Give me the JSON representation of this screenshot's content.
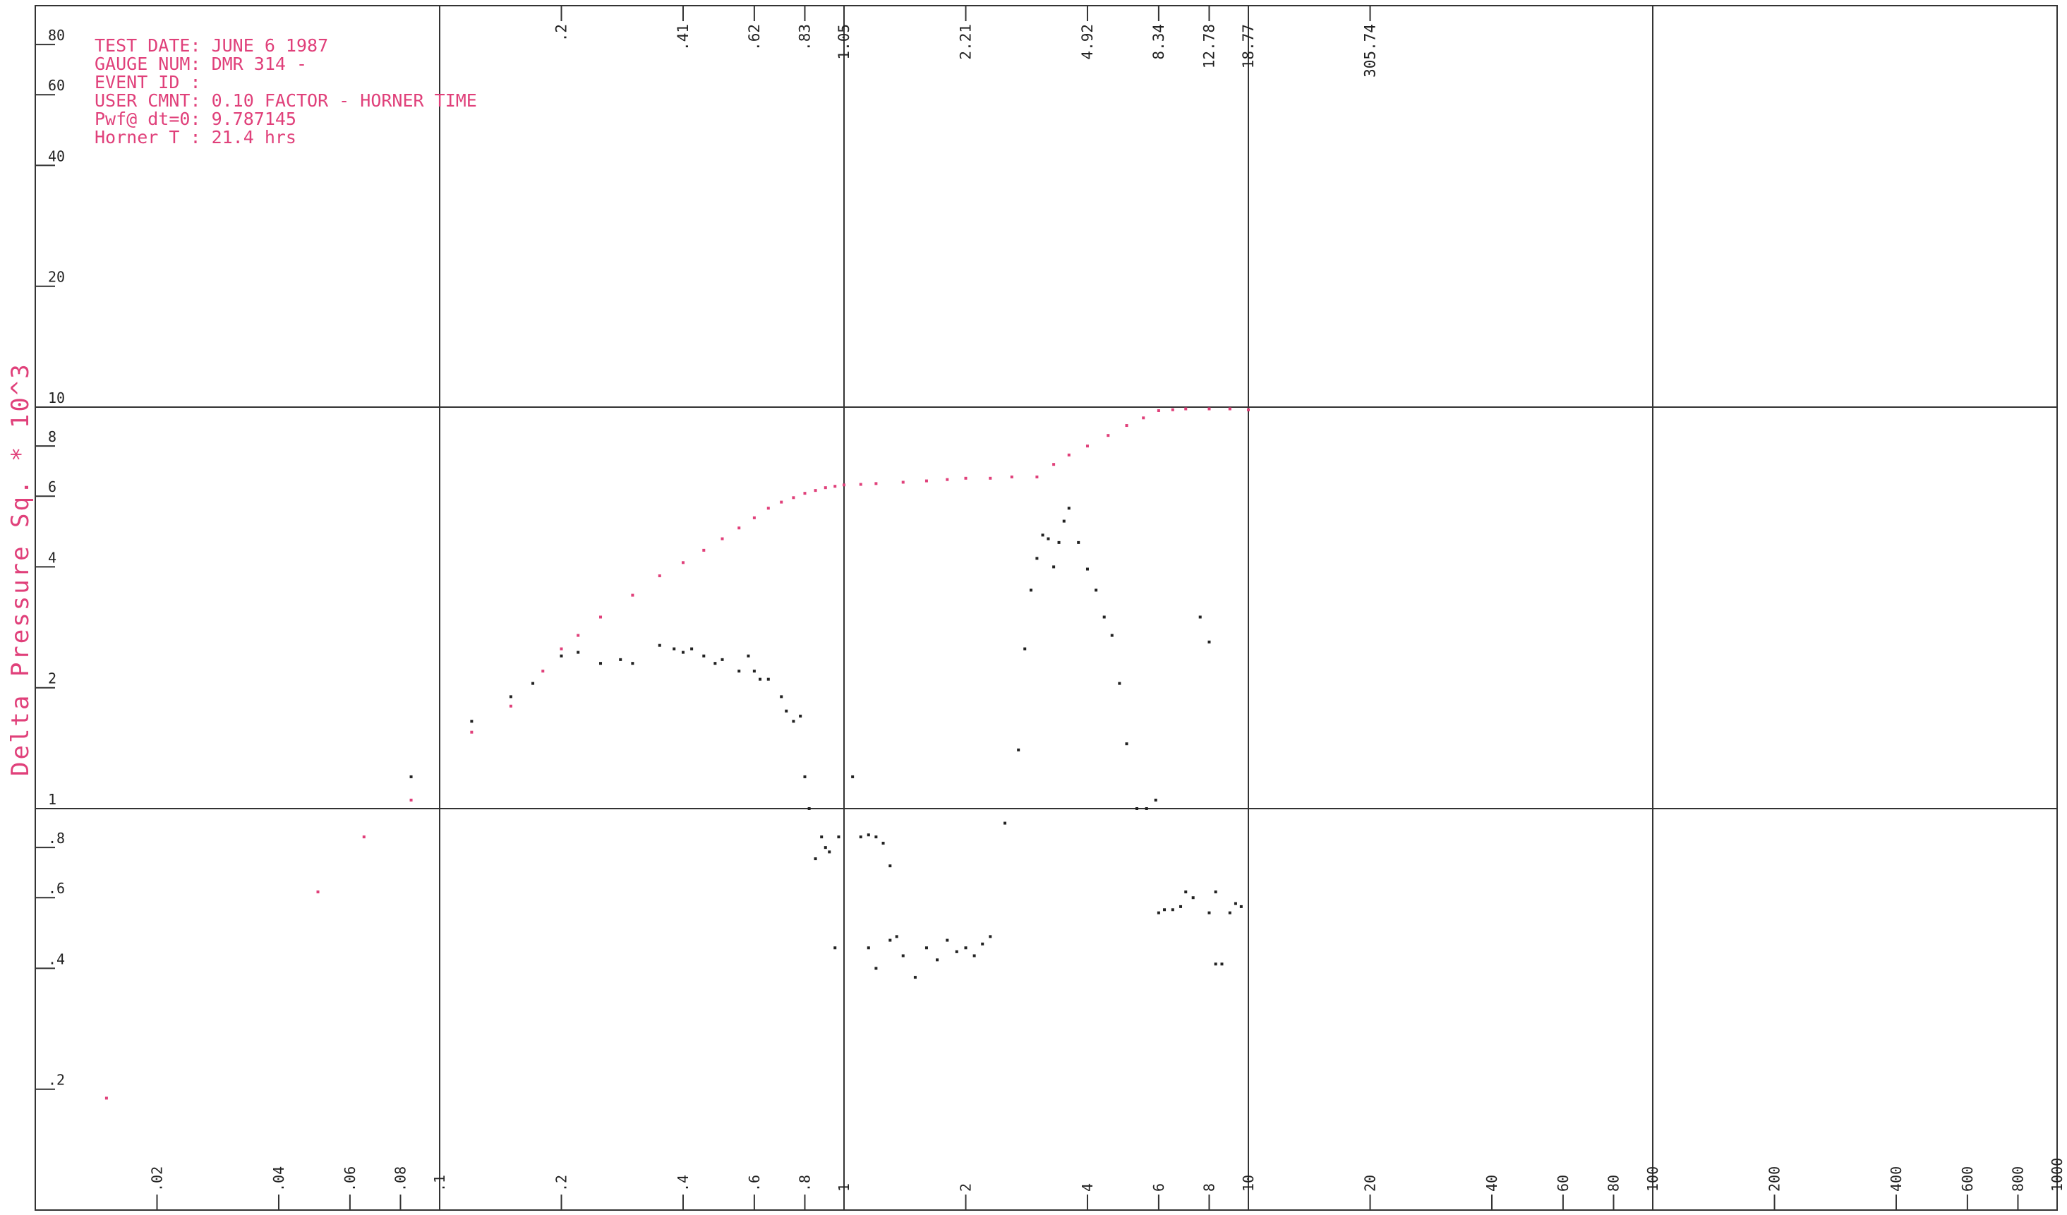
{
  "header": {
    "lines": [
      "TEST DATE: JUNE 6 1987",
      "GAUGE NUM: DMR 314 -",
      "EVENT ID :",
      "USER CMNT: 0.10 FACTOR - HORNER TIME",
      "Pwf@ dt=0:  9.787145",
      "Horner T :  21.4 hrs"
    ]
  },
  "chart_data": {
    "type": "scatter",
    "title": "",
    "ylabel": "Delta Pressure Sq. * 10^3",
    "xlabel": "",
    "x_scale": "log",
    "y_scale": "log",
    "xlim": [
      0.01,
      1000
    ],
    "ylim": [
      0.1,
      100
    ],
    "grid": true,
    "y_ticks": [
      {
        "value": 0.2,
        "label": ".2"
      },
      {
        "value": 0.4,
        "label": ".4"
      },
      {
        "value": 0.6,
        "label": ".6"
      },
      {
        "value": 0.8,
        "label": ".8"
      },
      {
        "value": 1,
        "label": "1"
      },
      {
        "value": 2,
        "label": "2"
      },
      {
        "value": 4,
        "label": "4"
      },
      {
        "value": 6,
        "label": "6"
      },
      {
        "value": 8,
        "label": "8"
      },
      {
        "value": 10,
        "label": "10"
      },
      {
        "value": 20,
        "label": "20"
      },
      {
        "value": 40,
        "label": "40"
      },
      {
        "value": 60,
        "label": "60"
      },
      {
        "value": 80,
        "label": "80"
      }
    ],
    "x_ticks": [
      {
        "value": 0.02,
        "label": ".02"
      },
      {
        "value": 0.04,
        "label": ".04"
      },
      {
        "value": 0.06,
        "label": ".06"
      },
      {
        "value": 0.08,
        "label": ".08"
      },
      {
        "value": 0.1,
        "label": ".1"
      },
      {
        "value": 0.2,
        "label": ".2"
      },
      {
        "value": 0.4,
        "label": ".4"
      },
      {
        "value": 0.6,
        "label": ".6"
      },
      {
        "value": 0.8,
        "label": ".8"
      },
      {
        "value": 1,
        "label": "1"
      },
      {
        "value": 2,
        "label": "2"
      },
      {
        "value": 4,
        "label": "4"
      },
      {
        "value": 6,
        "label": "6"
      },
      {
        "value": 8,
        "label": "8"
      },
      {
        "value": 10,
        "label": "10"
      },
      {
        "value": 20,
        "label": "20"
      },
      {
        "value": 40,
        "label": "40"
      },
      {
        "value": 60,
        "label": "60"
      },
      {
        "value": 80,
        "label": "80"
      },
      {
        "value": 100,
        "label": "100"
      },
      {
        "value": 200,
        "label": "200"
      },
      {
        "value": 400,
        "label": "400"
      },
      {
        "value": 600,
        "label": "600"
      },
      {
        "value": 800,
        "label": "800"
      },
      {
        "value": 1000,
        "label": "1000"
      }
    ],
    "top_ticks": [
      {
        "value": 0.2,
        "label": ".2"
      },
      {
        "value": 0.4,
        "label": ".41"
      },
      {
        "value": 0.6,
        "label": ".62"
      },
      {
        "value": 0.8,
        "label": ".83"
      },
      {
        "value": 1.0,
        "label": "1.05"
      },
      {
        "value": 2.0,
        "label": "2.21"
      },
      {
        "value": 4.0,
        "label": "4.92"
      },
      {
        "value": 6.0,
        "label": "8.34"
      },
      {
        "value": 8.0,
        "label": "12.78"
      },
      {
        "value": 10.0,
        "label": "18.77"
      },
      {
        "value": 20.0,
        "label": "305.74"
      }
    ],
    "series": [
      {
        "color": "#e0407a",
        "x": [
          0.015,
          0.05,
          0.065,
          0.085,
          0.12,
          0.15,
          0.18,
          0.2,
          0.22,
          0.25,
          0.3,
          0.35,
          0.4,
          0.45,
          0.5,
          0.55,
          0.6,
          0.65,
          0.7,
          0.75,
          0.8,
          0.85,
          0.9,
          0.95,
          1.0,
          1.1,
          1.2,
          1.4,
          1.6,
          1.8,
          2.0,
          2.3,
          2.6,
          3.0,
          3.3,
          3.6,
          4.0,
          4.5,
          5.0,
          5.5,
          6.0,
          6.5,
          7.0,
          8.0,
          9.0,
          10.0
        ],
        "y": [
          0.19,
          0.62,
          0.85,
          1.05,
          1.55,
          1.8,
          2.2,
          2.5,
          2.7,
          3.0,
          3.4,
          3.8,
          4.1,
          4.4,
          4.7,
          5.0,
          5.3,
          5.6,
          5.8,
          5.95,
          6.1,
          6.2,
          6.3,
          6.35,
          6.4,
          6.42,
          6.45,
          6.5,
          6.55,
          6.6,
          6.65,
          6.65,
          6.7,
          6.7,
          7.2,
          7.6,
          8.0,
          8.5,
          9.0,
          9.4,
          9.8,
          9.85,
          9.9,
          9.9,
          9.9,
          9.85
        ]
      },
      {
        "color": "#222222",
        "x": [
          0.085,
          0.12,
          0.15,
          0.17,
          0.2,
          0.22,
          0.25,
          0.28,
          0.3,
          0.35,
          0.38,
          0.4,
          0.42,
          0.45,
          0.48,
          0.5,
          0.55,
          0.58,
          0.6,
          0.62,
          0.65,
          0.7,
          0.72,
          0.75,
          0.78,
          0.8,
          0.82,
          0.85,
          0.88,
          0.9,
          0.92,
          0.95,
          0.97,
          1.05,
          1.1,
          1.15,
          1.2,
          1.25,
          1.3,
          1.35,
          1.15,
          1.2,
          1.3,
          1.4,
          1.5,
          1.6,
          1.7,
          1.8,
          1.9,
          2.0,
          2.1,
          2.2,
          2.3,
          2.5,
          2.7,
          2.8,
          2.9,
          3.0,
          3.1,
          3.2,
          3.3,
          3.4,
          3.5,
          3.6,
          3.8,
          4.0,
          4.2,
          4.4,
          4.6,
          4.8,
          5.0,
          5.3,
          5.6,
          5.9,
          6.0,
          6.2,
          6.5,
          6.8,
          7.0,
          7.3,
          7.6,
          8.0,
          8.3,
          8.6,
          9.0,
          9.3,
          9.6,
          8.0,
          8.3
        ],
        "y": [
          1.2,
          1.65,
          1.9,
          2.05,
          2.4,
          2.45,
          2.3,
          2.35,
          2.3,
          2.55,
          2.5,
          2.45,
          2.5,
          2.4,
          2.3,
          2.35,
          2.2,
          2.4,
          2.2,
          2.1,
          2.1,
          1.9,
          1.75,
          1.65,
          1.7,
          1.2,
          1.0,
          0.75,
          0.85,
          0.8,
          0.78,
          0.45,
          0.85,
          1.2,
          0.85,
          0.86,
          0.85,
          0.82,
          0.72,
          0.48,
          0.45,
          0.4,
          0.47,
          0.43,
          0.38,
          0.45,
          0.42,
          0.47,
          0.44,
          0.45,
          0.43,
          0.46,
          0.48,
          0.92,
          1.4,
          2.5,
          3.5,
          4.2,
          4.8,
          4.7,
          4.0,
          4.6,
          5.2,
          5.6,
          4.6,
          3.95,
          3.5,
          3.0,
          2.7,
          2.05,
          1.45,
          1.0,
          1.0,
          1.05,
          0.55,
          0.56,
          0.56,
          0.57,
          0.62,
          0.6,
          3.0,
          2.6,
          0.41,
          0.41,
          0.55,
          0.58,
          0.57,
          0.55,
          0.62
        ]
      }
    ]
  }
}
